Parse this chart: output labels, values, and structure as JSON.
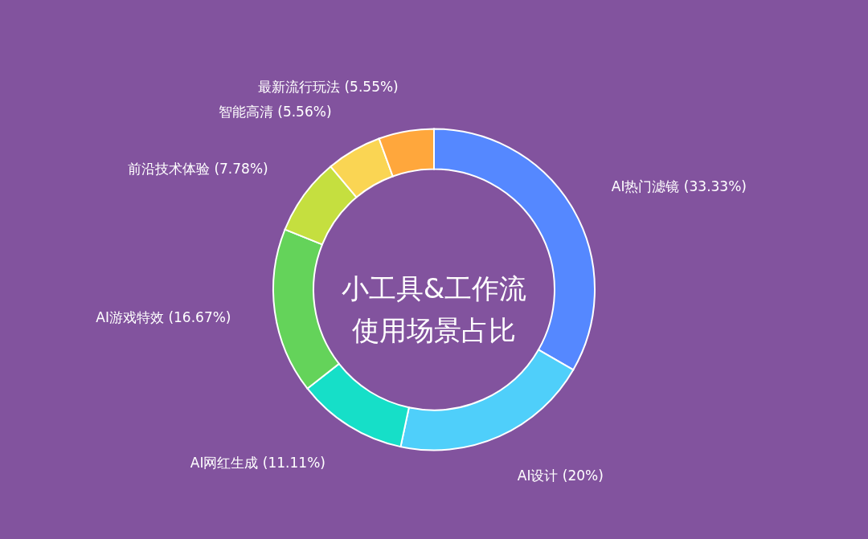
{
  "chart_data": {
    "type": "donut",
    "title": "小工具&工作流使用场景占比",
    "categories": [
      "AI热门滤镜",
      "AI设计",
      "AI网红生成",
      "AI游戏特效",
      "前沿技术体验",
      "智能高清",
      "最新流行玩法"
    ],
    "values": [
      33.33,
      20,
      11.11,
      16.67,
      7.78,
      5.56,
      5.55
    ],
    "value_labels": [
      "(33.33%)",
      "(20%)",
      "(11.11%)",
      "(16.67%)",
      "(7.78%)",
      "(5.56%)",
      "(5.55%)"
    ],
    "colors": [
      "#5588ff",
      "#4fcffa",
      "#16dfc8",
      "#64d35a",
      "#c5df3f",
      "#fad553",
      "#ffa73c"
    ]
  }
}
